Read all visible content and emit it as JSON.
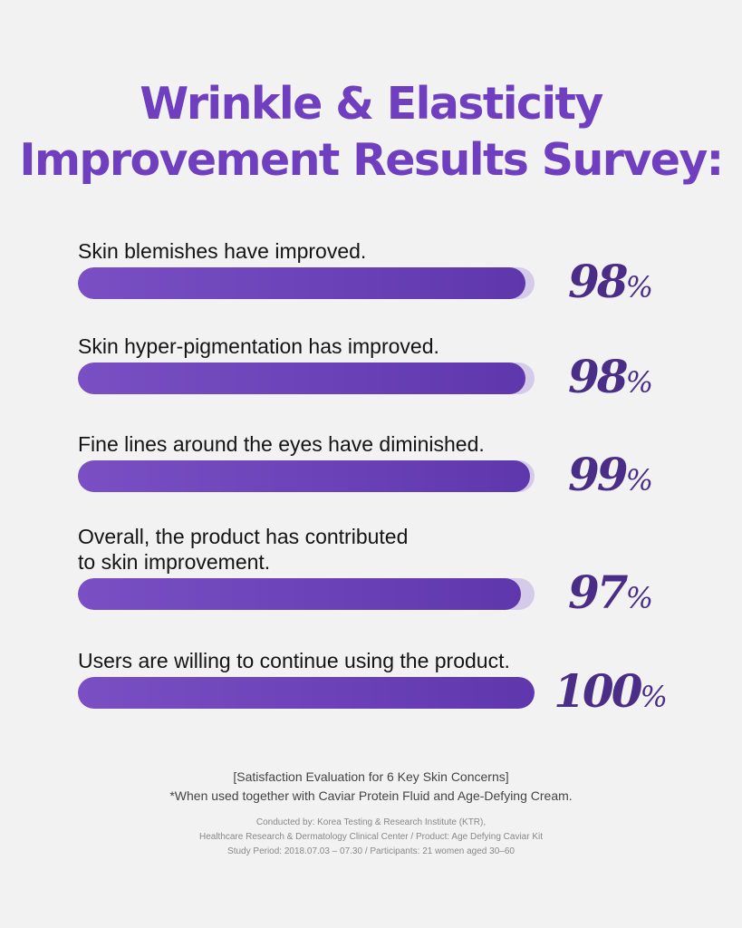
{
  "title": {
    "line1": "Wrinkle & Elasticity",
    "line2": "Improvement Results Survey:",
    "color": "#6f3fc0"
  },
  "colors": {
    "fill_start": "#7a4fc4",
    "fill_end": "#5f37ad",
    "track": "#d4cbe9",
    "pct_text": "#4a2d86"
  },
  "chart_data": {
    "type": "bar",
    "orientation": "horizontal",
    "title": "Wrinkle & Elasticity Improvement Results Survey:",
    "unit": "%",
    "xlim": [
      0,
      100
    ],
    "grid": false,
    "legend": "none",
    "categories": [
      "Skin blemishes have improved.",
      "Skin hyper-pigmentation has improved.",
      "Fine lines around the eyes have diminished.",
      "Overall, the product has contributed to skin improvement.",
      "Users are willing to continue using the product."
    ],
    "values": [
      98,
      98,
      99,
      97,
      100
    ],
    "rows": [
      {
        "label_lines": [
          "Skin blemishes have improved."
        ],
        "value": 98,
        "value_label": "98",
        "symbol": "%"
      },
      {
        "label_lines": [
          "Skin hyper-pigmentation has improved."
        ],
        "value": 98,
        "value_label": "98",
        "symbol": "%"
      },
      {
        "label_lines": [
          "Fine lines around the eyes have diminished."
        ],
        "value": 99,
        "value_label": "99",
        "symbol": "%"
      },
      {
        "label_lines": [
          "Overall, the product has contributed",
          "to skin improvement."
        ],
        "value": 97,
        "value_label": "97",
        "symbol": "%"
      },
      {
        "label_lines": [
          "Users are willing to continue using the product."
        ],
        "value": 100,
        "value_label": "100",
        "symbol": "%"
      }
    ]
  },
  "footer": {
    "note1": "[Satisfaction Evaluation for 6 Key Skin Concerns]",
    "note2": "*When used together with Caviar Protein Fluid and Age-Defying Cream.",
    "credit_line1": "Conducted by: Korea Testing & Research Institute (KTR),",
    "credit_line2": "Healthcare Research & Dermatology Clinical Center / Product: Age Defying Caviar Kit",
    "credit_line3": "Study Period: 2018.07.03 – 07.30 / Participants: 21 women aged 30–60"
  }
}
